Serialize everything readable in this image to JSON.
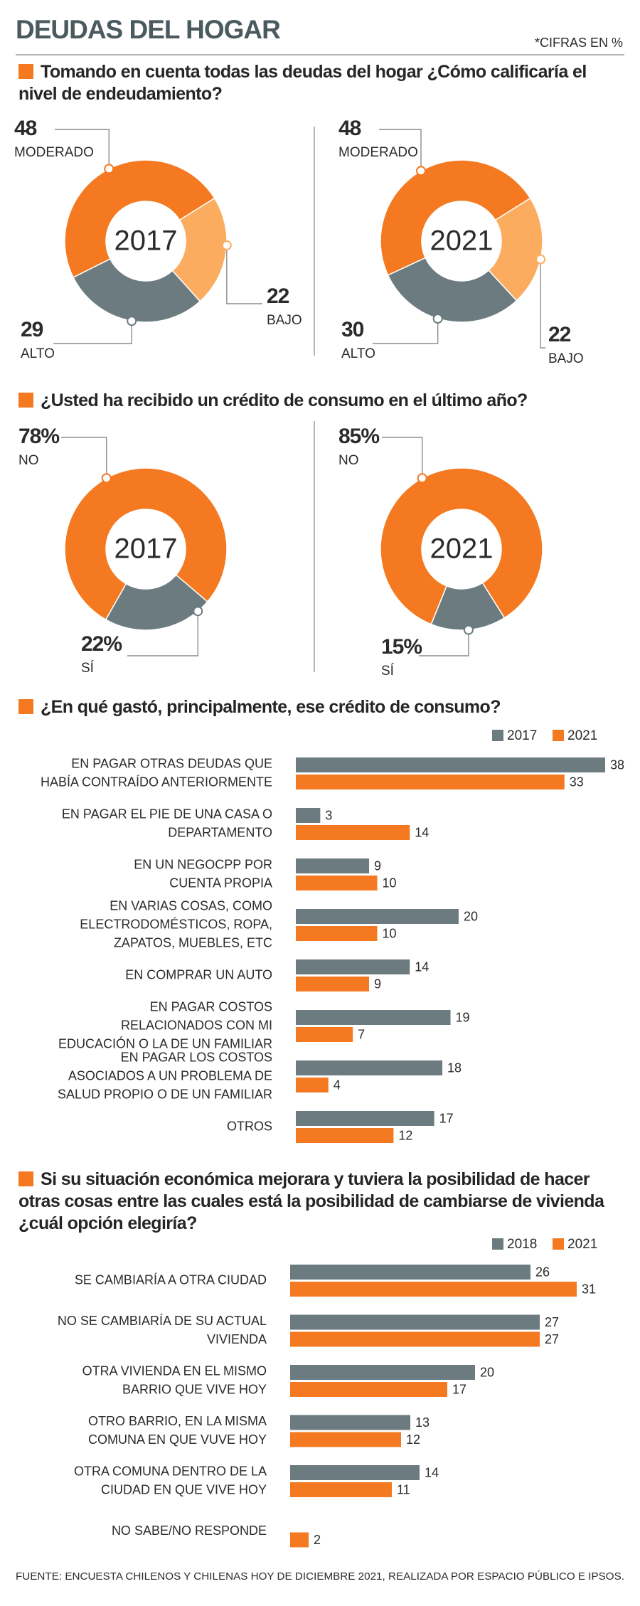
{
  "title": "DEUDAS DEL HOGAR",
  "note": "*CIFRAS EN %",
  "source": "FUENTE: ENCUESTA CHILENOS Y CHILENAS HOY  DE DICIEMBRE 2021, REALIZADA POR ESPACIO PÚBLICO E IPSOS.",
  "chart_data": [
    {
      "type": "donut",
      "title": "Tomando en cuenta todas las deudas del hogar ¿Cómo calificaría el nivel de endeudamiento?",
      "panels": [
        {
          "label": "2017",
          "categories": [
            "MODERADO",
            "BAJO",
            "ALTO"
          ],
          "values": [
            48,
            22,
            29
          ],
          "colors": [
            "#f47920",
            "#fbac5f",
            "#6b7b80"
          ]
        },
        {
          "label": "2021",
          "categories": [
            "MODERADO",
            "BAJO",
            "ALTO"
          ],
          "values": [
            48,
            22,
            30
          ],
          "colors": [
            "#f47920",
            "#fbac5f",
            "#6b7b80"
          ]
        }
      ]
    },
    {
      "type": "donut",
      "title": "¿Usted ha recibido un crédito de consumo en el último año?",
      "panels": [
        {
          "label": "2017",
          "categories": [
            "NO",
            "SÍ"
          ],
          "values": [
            78,
            22
          ],
          "value_labels": [
            "78%",
            "22%"
          ],
          "colors": [
            "#f47920",
            "#6b7b80"
          ]
        },
        {
          "label": "2021",
          "categories": [
            "NO",
            "SÍ"
          ],
          "values": [
            85,
            15
          ],
          "value_labels": [
            "85%",
            "15%"
          ],
          "colors": [
            "#f47920",
            "#6b7b80"
          ]
        }
      ]
    },
    {
      "type": "bar",
      "orientation": "horizontal",
      "title": "¿En qué gastó, principalmente, ese crédito de consumo?",
      "categories": [
        [
          "EN PAGAR OTRAS DEUDAS QUE",
          "HABÍA CONTRAÍDO ANTERIORMENTE"
        ],
        [
          "EN PAGAR EL PIE DE UNA CASA O",
          "DEPARTAMENTO"
        ],
        [
          "EN UN NEGOCPP POR",
          "CUENTA PROPIA"
        ],
        [
          "EN VARIAS COSAS, COMO",
          "ELECTRODOMÉSTICOS, ROPA,",
          "ZAPATOS, MUEBLES, ETC"
        ],
        [
          "EN COMPRAR UN AUTO"
        ],
        [
          "EN PAGAR COSTOS",
          "RELACIONADOS CON MI",
          "EDUCACIÓN O LA DE UN FAMILIAR"
        ],
        [
          "EN PAGAR LOS COSTOS",
          "ASOCIADOS A UN PROBLEMA DE",
          "SALUD PROPIO O DE UN FAMILIAR"
        ],
        [
          "OTROS"
        ]
      ],
      "series": [
        {
          "name": "2017",
          "color": "#6b7b80",
          "values": [
            38,
            3,
            9,
            20,
            14,
            19,
            18,
            17
          ]
        },
        {
          "name": "2021",
          "color": "#f47920",
          "values": [
            33,
            14,
            10,
            10,
            9,
            7,
            4,
            12
          ]
        }
      ]
    },
    {
      "type": "bar",
      "orientation": "horizontal",
      "title": "Si su situación económica mejorara y tuviera la posibilidad de hacer otras cosas entre las cuales está la posibilidad de cambiarse de vivienda ¿cuál opción elegiría?",
      "categories": [
        [
          "SE CAMBIARÍA A OTRA CIUDAD"
        ],
        [
          "NO SE CAMBIARÍA DE SU ACTUAL",
          "VIVIENDA"
        ],
        [
          "OTRA VIVIENDA EN EL MISMO",
          "BARRIO QUE VIVE HOY"
        ],
        [
          "OTRO BARRIO, EN LA MISMA",
          "COMUNA EN QUE VUVE HOY"
        ],
        [
          "OTRA COMUNA DENTRO DE LA",
          "CIUDAD EN QUE VIVE HOY"
        ],
        [
          "NO SABE/NO RESPONDE"
        ]
      ],
      "series": [
        {
          "name": "2018",
          "color": "#6b7b80",
          "values": [
            26,
            27,
            20,
            13,
            14,
            null
          ]
        },
        {
          "name": "2021",
          "color": "#f47920",
          "values": [
            31,
            27,
            17,
            12,
            11,
            2
          ]
        }
      ]
    }
  ]
}
